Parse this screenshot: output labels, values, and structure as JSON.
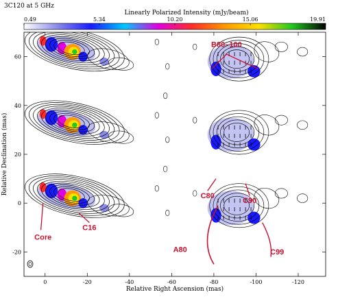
{
  "chart_data": {
    "type": "heatmap",
    "title": "3C120 at 5 GHz",
    "colorbar": {
      "label": "Linearly Polarized Intensity (mJy/beam)",
      "ticks": [
        0.49,
        5.34,
        10.2,
        15.06,
        19.91
      ],
      "tick_labels": [
        "0.49",
        "5.34",
        "10.20",
        "15.06",
        "19.91"
      ],
      "range": [
        0.49,
        19.91
      ],
      "colors": [
        "#ffffff",
        "#8a8ae8",
        "#1a1aff",
        "#00c8ff",
        "#e000e0",
        "#ff2a2a",
        "#ff9a00",
        "#ffe000",
        "#20c820",
        "#000000"
      ]
    },
    "xlabel": "Relative Right Ascension (mas)",
    "ylabel": "Relative Declination (mas)",
    "xlim": [
      10,
      -133
    ],
    "ylim": [
      -30,
      70
    ],
    "x_ticks": [
      0,
      -20,
      -40,
      -60,
      -80,
      -100,
      -120
    ],
    "x_tick_labels": [
      "0",
      "-20",
      "-40",
      "-60",
      "-80",
      "-100",
      "-120"
    ],
    "y_ticks": [
      -20,
      0,
      20,
      40,
      60
    ],
    "y_tick_labels": [
      "-20",
      "0",
      "20",
      "40",
      "60"
    ],
    "epochs_y_offsets": [
      60,
      30,
      0
    ],
    "annotations": [
      {
        "label": "B80–100",
        "x": -86,
        "y": 64
      },
      {
        "label": "C80",
        "x": -77,
        "y": 2
      },
      {
        "label": "C90",
        "x": -97,
        "y": 0
      },
      {
        "label": "A80",
        "x": -64,
        "y": -20
      },
      {
        "label": "C99",
        "x": -110,
        "y": -21
      },
      {
        "label": "Core",
        "x": 1,
        "y": -15
      },
      {
        "label": "C16",
        "x": -21,
        "y": -11
      }
    ]
  },
  "colors": {
    "annotation": "#c8102e",
    "contour": "#000000"
  }
}
